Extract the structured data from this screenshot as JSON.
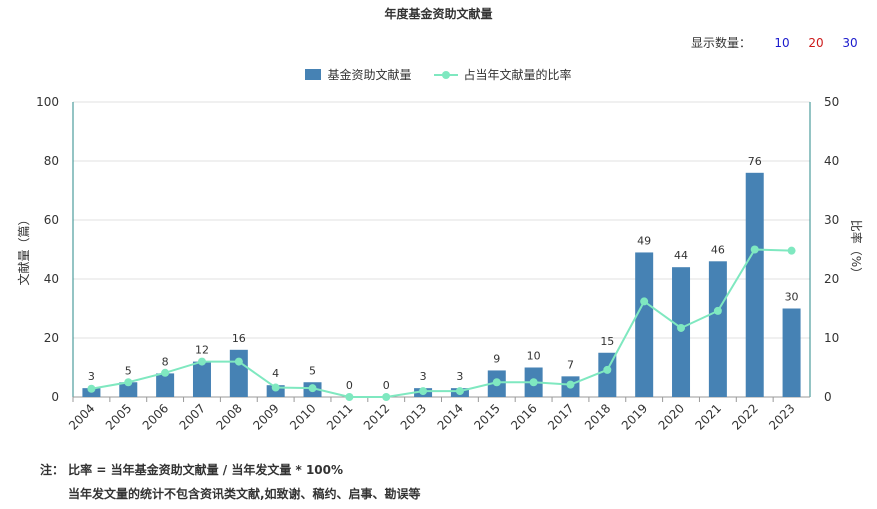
{
  "header": {
    "title": "年度基金资助文献量"
  },
  "display_count": {
    "label": "显示数量：",
    "options": [
      {
        "label": "10",
        "color": "#1a1acc"
      },
      {
        "label": "20",
        "color": "#cc1a1a"
      },
      {
        "label": "30",
        "color": "#1a1acc"
      }
    ]
  },
  "legend": {
    "bar_label": "基金资助文献量",
    "line_label": "占当年文献量的比率"
  },
  "colors": {
    "bar": "#4682b4",
    "line": "#7fe8c0",
    "axis": "#2a8a8a",
    "grid": "#e0e0e0"
  },
  "chart_data": {
    "type": "bar",
    "title": "年度基金资助文献量",
    "categories": [
      "2004",
      "2005",
      "2006",
      "2007",
      "2008",
      "2009",
      "2010",
      "2011",
      "2012",
      "2013",
      "2014",
      "2015",
      "2016",
      "2017",
      "2018",
      "2019",
      "2020",
      "2021",
      "2022",
      "2023"
    ],
    "series": [
      {
        "name": "基金资助文献量",
        "type": "bar",
        "axis": "left",
        "values": [
          3,
          5,
          8,
          12,
          16,
          4,
          5,
          0,
          0,
          3,
          3,
          9,
          10,
          7,
          15,
          49,
          44,
          46,
          76,
          30
        ]
      },
      {
        "name": "占当年文献量的比率",
        "type": "line",
        "axis": "right",
        "values": [
          1.4,
          2.5,
          4.1,
          6.0,
          6.0,
          1.6,
          1.5,
          0.0,
          0.0,
          1.0,
          1.0,
          2.5,
          2.5,
          2.1,
          4.6,
          16.2,
          11.7,
          14.6,
          25.0,
          24.8
        ]
      }
    ],
    "ylabel": "文献量（篇）",
    "ylabel_right": "比率（%）",
    "ylim": [
      0,
      100
    ],
    "ylim_right": [
      0,
      50
    ],
    "yticks": [
      "0",
      "20",
      "40",
      "60",
      "80",
      "100"
    ],
    "yticks_right": [
      "0",
      "10",
      "20",
      "30",
      "40",
      "50"
    ],
    "grid": true,
    "legend_position": "top-center"
  },
  "notes": {
    "line1": "注： 比率 = 当年基金资助文献量 / 当年发文量 * 100%",
    "line2": "当年发文量的统计不包含资讯类文献,如致谢、稿约、启事、勘误等"
  }
}
